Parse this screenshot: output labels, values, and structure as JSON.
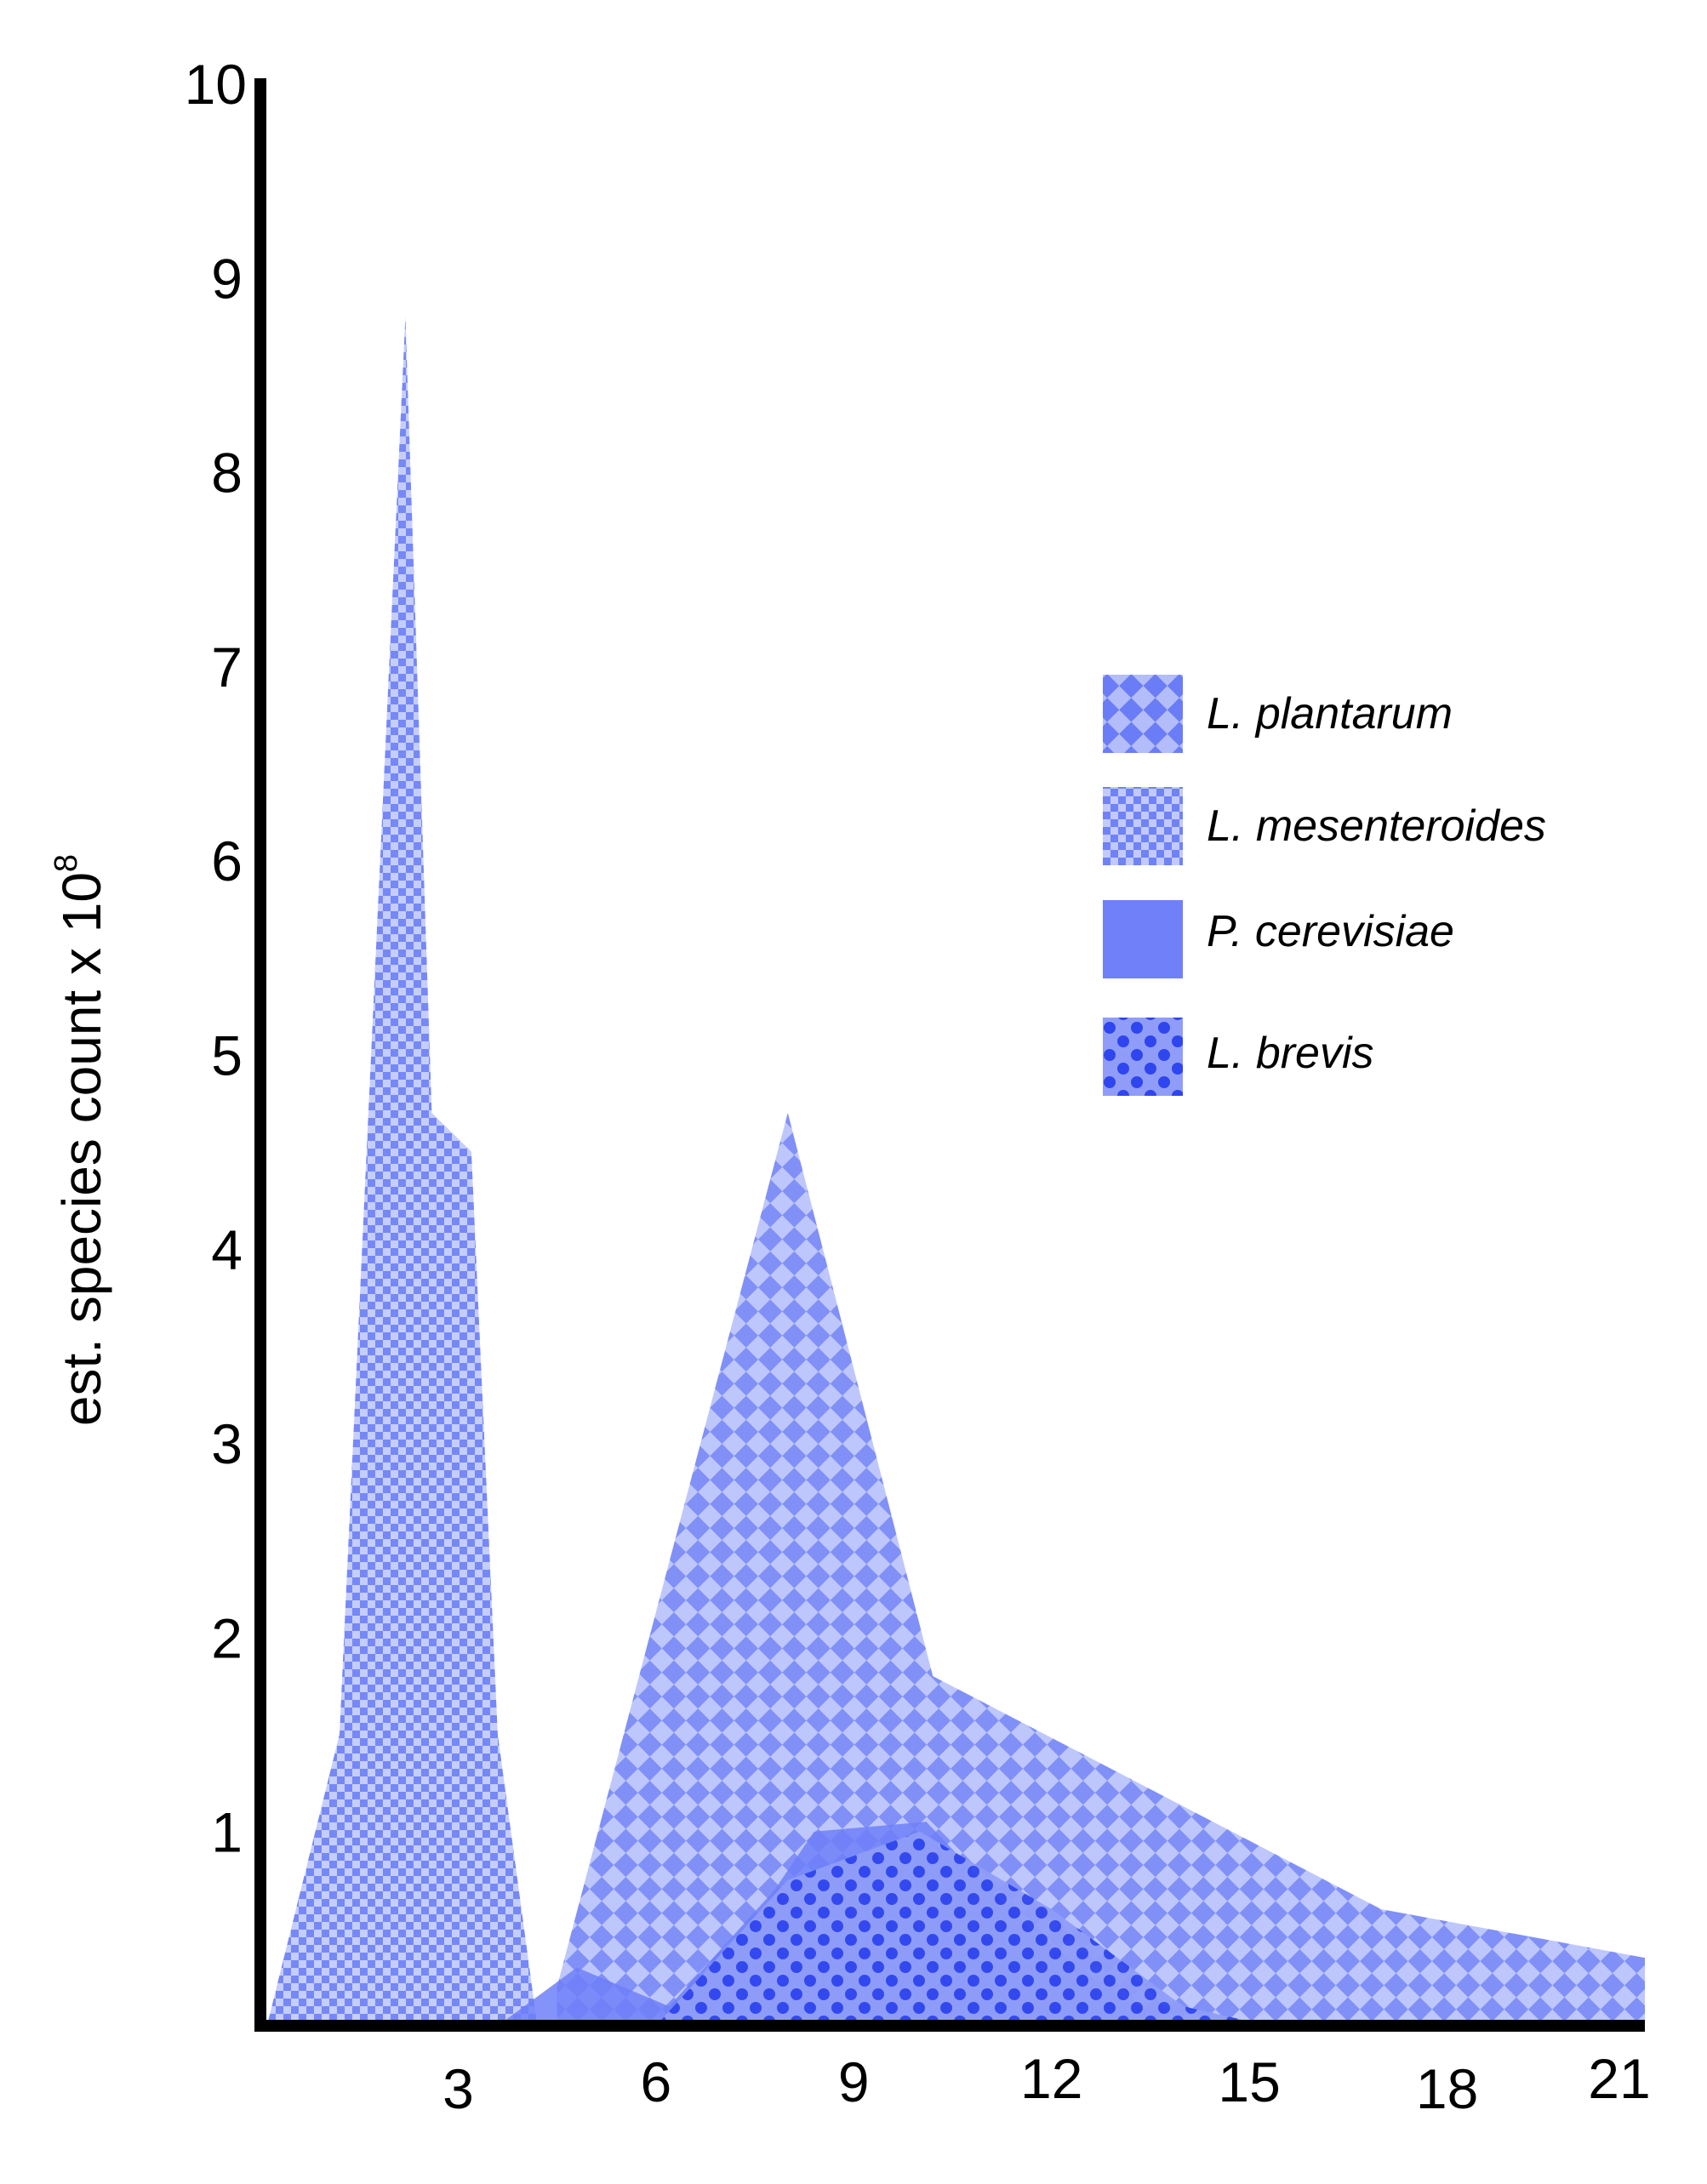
{
  "chart_data": {
    "type": "area",
    "ylabel": "est. species count x 10",
    "ylabel_exponent": "8",
    "xlabel": "",
    "ylim": [
      0,
      10
    ],
    "xlim": [
      0,
      21
    ],
    "x_ticks": [
      3,
      6,
      9,
      12,
      15,
      18,
      21
    ],
    "y_ticks": [
      1,
      2,
      3,
      4,
      5,
      6,
      7,
      8,
      9,
      10
    ],
    "grid": false,
    "legend_position": "right",
    "colors": {
      "base": "#5a6ff5",
      "solid": "#6f80f8",
      "dark": "#3347ee"
    },
    "series": [
      {
        "name": "L. plantarum",
        "pattern": "large-checker",
        "x": [
          4.5,
          8.0,
          10.2,
          17.0,
          21.0
        ],
        "y": [
          0.2,
          4.7,
          1.8,
          0.6,
          0.35
        ]
      },
      {
        "name": "L. mesenteroides",
        "pattern": "small-checker",
        "x": [
          0.1,
          1.2,
          2.2,
          2.6,
          3.2,
          3.6,
          4.2,
          4.7
        ],
        "y": [
          0.0,
          1.5,
          8.8,
          4.7,
          4.5,
          1.5,
          0.0,
          0.0
        ]
      },
      {
        "name": "P. cerevisiae",
        "pattern": "solid",
        "x": [
          3.6,
          4.8,
          6.2,
          7.8,
          8.4,
          10.1,
          11.5,
          12.8,
          13.8
        ],
        "y": [
          0.0,
          0.3,
          0.1,
          0.7,
          1.0,
          1.05,
          0.55,
          0.2,
          0.0
        ]
      },
      {
        "name": "L. brevis",
        "pattern": "dots",
        "x": [
          6.0,
          8.0,
          10.0,
          12.0,
          14.0,
          15.3
        ],
        "y": [
          0.0,
          0.75,
          1.0,
          0.6,
          0.1,
          0.0
        ]
      }
    ]
  }
}
